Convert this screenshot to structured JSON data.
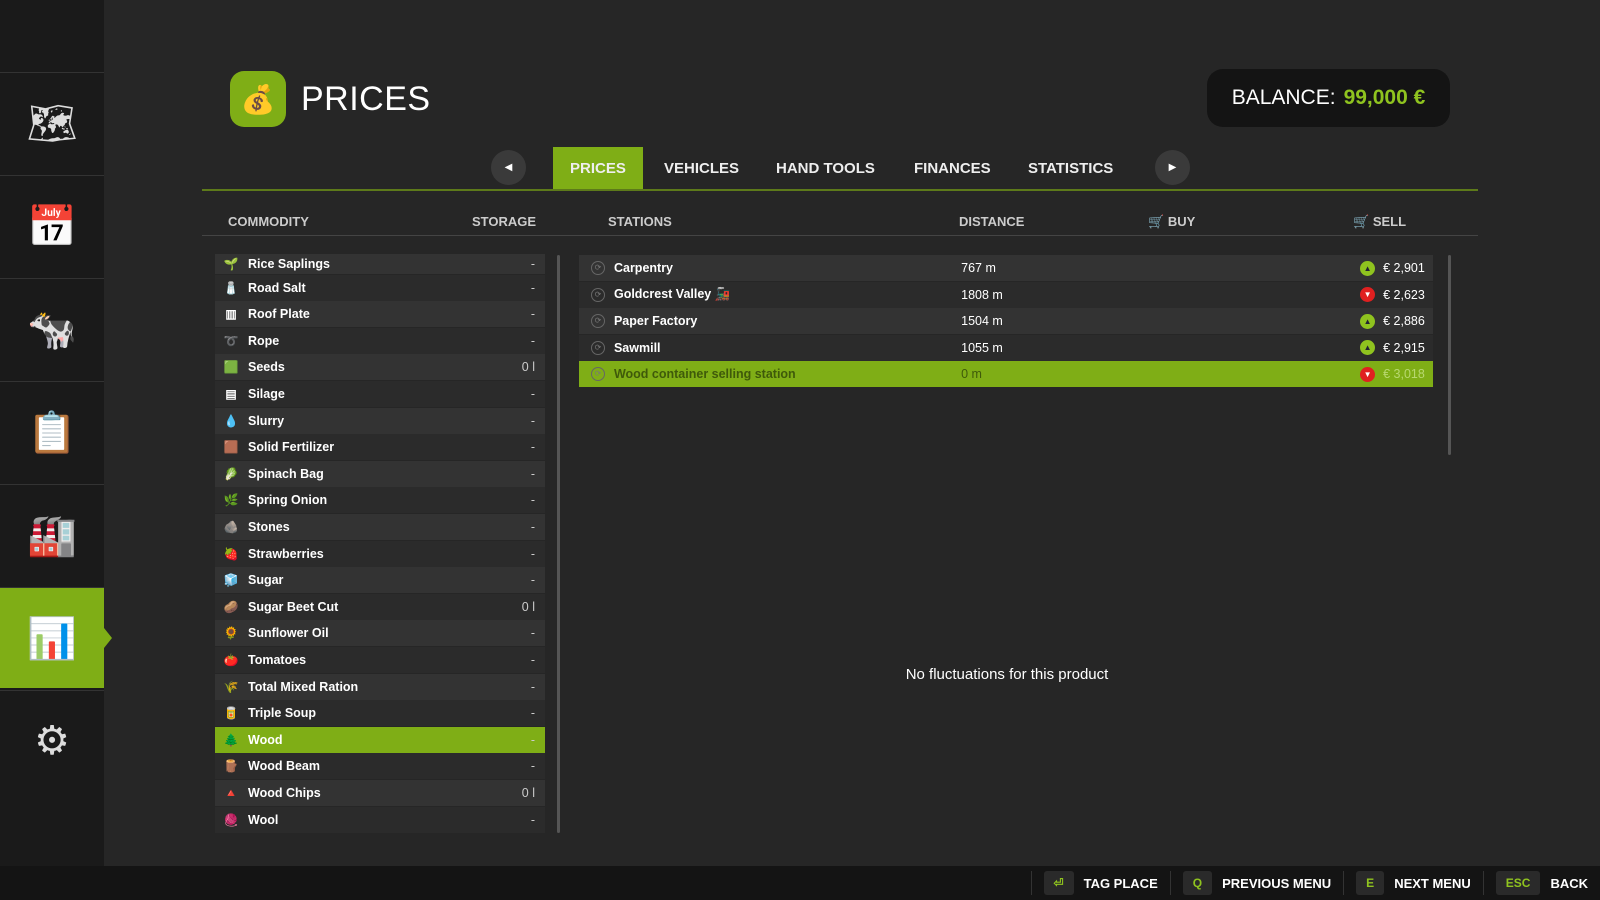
{
  "sidebar": {
    "items": [
      {
        "icon": "map-icon",
        "glyph": "🗺"
      },
      {
        "icon": "calendar-icon",
        "glyph": "📅"
      },
      {
        "icon": "cow-icon",
        "glyph": "🐄"
      },
      {
        "icon": "contracts-icon",
        "glyph": "📋"
      },
      {
        "icon": "production-icon",
        "glyph": "🏭"
      },
      {
        "icon": "prices-chart-icon",
        "glyph": "📊",
        "active": true
      },
      {
        "icon": "settings-icon",
        "glyph": "⚙"
      }
    ]
  },
  "header": {
    "title": "PRICES",
    "icon": "coins-icon",
    "balance_label": "BALANCE:",
    "balance_value": "99,000 €"
  },
  "tabs": [
    "PRICES",
    "VEHICLES",
    "HAND TOOLS",
    "FINANCES",
    "STATISTICS"
  ],
  "active_tab": "PRICES",
  "columns": {
    "commodity": "COMMODITY",
    "storage": "STORAGE",
    "stations": "STATIONS",
    "distance": "DISTANCE",
    "buy": "BUY",
    "sell": "SELL"
  },
  "commodities": [
    {
      "name": "Rice Saplings",
      "storage": "-",
      "icon": "🌱"
    },
    {
      "name": "Road Salt",
      "storage": "-",
      "icon": "🧂"
    },
    {
      "name": "Roof Plate",
      "storage": "-",
      "icon": "▥"
    },
    {
      "name": "Rope",
      "storage": "-",
      "icon": "➰"
    },
    {
      "name": "Seeds",
      "storage": "0 l",
      "icon": "🟩"
    },
    {
      "name": "Silage",
      "storage": "-",
      "icon": "▤"
    },
    {
      "name": "Slurry",
      "storage": "-",
      "icon": "💧"
    },
    {
      "name": "Solid Fertilizer",
      "storage": "-",
      "icon": "🟫"
    },
    {
      "name": "Spinach Bag",
      "storage": "-",
      "icon": "🥬"
    },
    {
      "name": "Spring Onion",
      "storage": "-",
      "icon": "🌿"
    },
    {
      "name": "Stones",
      "storage": "-",
      "icon": "🪨"
    },
    {
      "name": "Strawberries",
      "storage": "-",
      "icon": "🍓"
    },
    {
      "name": "Sugar",
      "storage": "-",
      "icon": "🧊"
    },
    {
      "name": "Sugar Beet Cut",
      "storage": "0 l",
      "icon": "🥔"
    },
    {
      "name": "Sunflower Oil",
      "storage": "-",
      "icon": "🌻"
    },
    {
      "name": "Tomatoes",
      "storage": "-",
      "icon": "🍅"
    },
    {
      "name": "Total Mixed Ration",
      "storage": "-",
      "icon": "🌾"
    },
    {
      "name": "Triple Soup",
      "storage": "-",
      "icon": "🥫"
    },
    {
      "name": "Wood",
      "storage": "-",
      "icon": "🌲",
      "selected": true
    },
    {
      "name": "Wood Beam",
      "storage": "-",
      "icon": "🪵"
    },
    {
      "name": "Wood Chips",
      "storage": "0 l",
      "icon": "🔺"
    },
    {
      "name": "Wool",
      "storage": "-",
      "icon": "🧶"
    }
  ],
  "stations": [
    {
      "name": "Carpentry",
      "distance": "767 m",
      "trend": "up",
      "sell": "€ 2,901"
    },
    {
      "name": "Goldcrest Valley",
      "distance": "1808 m",
      "trend": "down",
      "sell": "€ 2,623",
      "train": true
    },
    {
      "name": "Paper Factory",
      "distance": "1504 m",
      "trend": "up",
      "sell": "€ 2,886"
    },
    {
      "name": "Sawmill",
      "distance": "1055 m",
      "trend": "up",
      "sell": "€ 2,915"
    },
    {
      "name": "Wood container selling station",
      "distance": "0 m",
      "trend": "down",
      "sell": "€ 3,018",
      "selected": true
    }
  ],
  "no_fluctuations": "No fluctuations for this product",
  "colors": {
    "accent": "#7fae16",
    "up": "#8fc31f",
    "down": "#e02020"
  },
  "bottom_bar": [
    {
      "key": "⏎",
      "label": "TAG PLACE"
    },
    {
      "key": "Q",
      "label": "PREVIOUS MENU"
    },
    {
      "key": "E",
      "label": "NEXT MENU"
    },
    {
      "key": "ESC",
      "label": "BACK"
    }
  ]
}
